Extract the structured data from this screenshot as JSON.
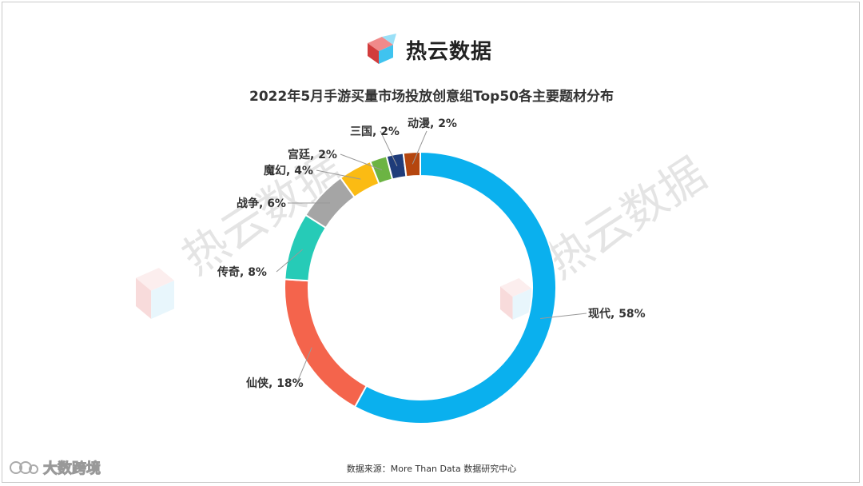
{
  "brand": {
    "logo_icon": "cube-logo-icon",
    "name": "热云数据"
  },
  "watermark_icon": "cube-logo-watermark-icon",
  "watermark_text": "热云数据",
  "footer": {
    "source": "数据来源：More Than Data 数据研究中心",
    "corner_icon": "platform-logo-icon",
    "corner_text": "大数跨境"
  },
  "chart_data": {
    "type": "pie",
    "title": "2022年5月手游买量市场投放创意组Top50各主要题材分布",
    "donut": true,
    "start": "top, clockwise",
    "slices": [
      {
        "label": "现代",
        "value": 58,
        "color": "#0ab0ee"
      },
      {
        "label": "仙侠",
        "value": 18,
        "color": "#f4644c"
      },
      {
        "label": "传奇",
        "value": 8,
        "color": "#26cbb7"
      },
      {
        "label": "战争",
        "value": 6,
        "color": "#a5a5a5"
      },
      {
        "label": "魔幻",
        "value": 4,
        "color": "#fbbb13"
      },
      {
        "label": "宫廷",
        "value": 2,
        "color": "#6cb443"
      },
      {
        "label": "三国",
        "value": 2,
        "color": "#1f3c7a"
      },
      {
        "label": "动漫",
        "value": 2,
        "color": "#b5460f"
      }
    ],
    "data_labels": [
      "现代, 58%",
      "仙侠, 18%",
      "传奇, 8%",
      "战争, 6%",
      "魔幻, 4%",
      "宫廷, 2%",
      "三国, 2%",
      "动漫, 2%"
    ]
  }
}
